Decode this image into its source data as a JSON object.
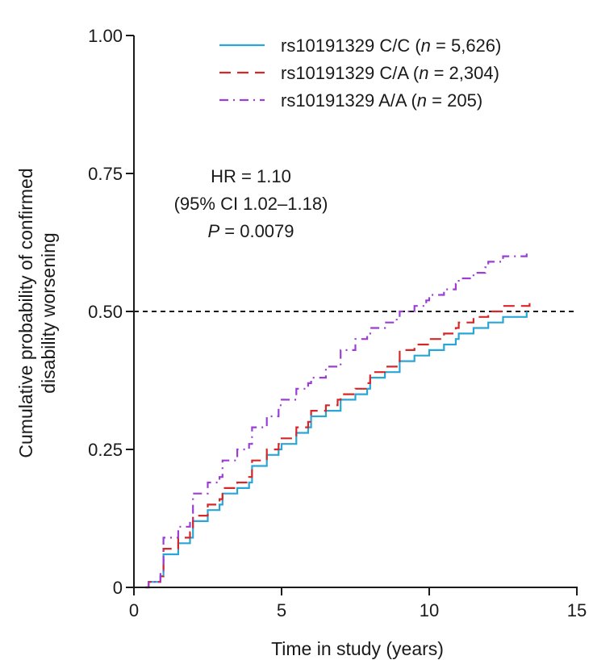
{
  "chart_data": {
    "type": "line",
    "title": "",
    "xlabel": "Time in study (years)",
    "ylabel": [
      "Cumulative probability of confirmed",
      "disability worsening"
    ],
    "xlim": [
      0,
      15
    ],
    "ylim": [
      0,
      1
    ],
    "xticks": [
      0,
      5,
      10,
      15
    ],
    "xtick_labels": [
      "0",
      "5",
      "10",
      "15"
    ],
    "yticks": [
      0,
      0.25,
      0.5,
      0.75,
      1.0
    ],
    "ytick_labels": [
      "0",
      "0.25",
      "0.50",
      "0.75",
      "1.00"
    ],
    "reference_line": {
      "y": 0.5,
      "style": "dashed",
      "color": "#1a1a1a"
    },
    "annotation": [
      "HR = 1.10",
      "(95% CI 1.02–1.18)",
      "P = 0.0079"
    ],
    "legend_position": "top-right",
    "series": [
      {
        "name": "rs10191329 C/C (n = 5,626)",
        "label_prefix": "rs10191329 C/C (",
        "label_n": "n",
        "label_suffix": " = 5,626)",
        "color": "#2aa6d6",
        "dash": "solid",
        "points": [
          [
            0.4,
            0
          ],
          [
            0.5,
            0.01
          ],
          [
            0.9,
            0.02
          ],
          [
            1.0,
            0.06
          ],
          [
            1.5,
            0.08
          ],
          [
            1.9,
            0.09
          ],
          [
            2.0,
            0.12
          ],
          [
            2.5,
            0.14
          ],
          [
            2.9,
            0.15
          ],
          [
            3.0,
            0.17
          ],
          [
            3.5,
            0.18
          ],
          [
            3.9,
            0.19
          ],
          [
            4.0,
            0.22
          ],
          [
            4.5,
            0.24
          ],
          [
            4.9,
            0.25
          ],
          [
            5.0,
            0.26
          ],
          [
            5.5,
            0.28
          ],
          [
            5.9,
            0.29
          ],
          [
            6.0,
            0.31
          ],
          [
            6.5,
            0.32
          ],
          [
            6.9,
            0.32
          ],
          [
            7.0,
            0.34
          ],
          [
            7.5,
            0.35
          ],
          [
            7.9,
            0.36
          ],
          [
            8.0,
            0.38
          ],
          [
            8.5,
            0.39
          ],
          [
            8.9,
            0.39
          ],
          [
            9.0,
            0.41
          ],
          [
            9.5,
            0.42
          ],
          [
            9.9,
            0.42
          ],
          [
            10.0,
            0.43
          ],
          [
            10.5,
            0.44
          ],
          [
            10.9,
            0.45
          ],
          [
            11.0,
            0.46
          ],
          [
            11.5,
            0.47
          ],
          [
            11.9,
            0.47
          ],
          [
            12.0,
            0.48
          ],
          [
            12.5,
            0.49
          ],
          [
            13.3,
            0.5
          ]
        ]
      },
      {
        "name": "rs10191329 C/A (n = 2,304)",
        "label_prefix": "rs10191329 C/A (",
        "label_n": "n",
        "label_suffix": " = 2,304)",
        "color": "#d62728",
        "dash": "long-dash",
        "points": [
          [
            0.4,
            0
          ],
          [
            0.5,
            0.01
          ],
          [
            0.9,
            0.02
          ],
          [
            1.0,
            0.07
          ],
          [
            1.5,
            0.09
          ],
          [
            1.9,
            0.1
          ],
          [
            2.0,
            0.13
          ],
          [
            2.5,
            0.15
          ],
          [
            2.9,
            0.16
          ],
          [
            3.0,
            0.18
          ],
          [
            3.5,
            0.19
          ],
          [
            3.9,
            0.2
          ],
          [
            4.0,
            0.23
          ],
          [
            4.5,
            0.25
          ],
          [
            4.9,
            0.26
          ],
          [
            5.0,
            0.27
          ],
          [
            5.5,
            0.29
          ],
          [
            5.9,
            0.3
          ],
          [
            6.0,
            0.32
          ],
          [
            6.5,
            0.33
          ],
          [
            6.9,
            0.34
          ],
          [
            7.0,
            0.35
          ],
          [
            7.5,
            0.36
          ],
          [
            7.9,
            0.37
          ],
          [
            8.0,
            0.39
          ],
          [
            8.5,
            0.4
          ],
          [
            8.9,
            0.41
          ],
          [
            9.0,
            0.43
          ],
          [
            9.5,
            0.44
          ],
          [
            9.9,
            0.44
          ],
          [
            10.0,
            0.45
          ],
          [
            10.5,
            0.46
          ],
          [
            10.9,
            0.47
          ],
          [
            11.0,
            0.48
          ],
          [
            11.5,
            0.49
          ],
          [
            11.9,
            0.49
          ],
          [
            12.0,
            0.5
          ],
          [
            12.5,
            0.51
          ],
          [
            13.0,
            0.51
          ],
          [
            13.4,
            0.52
          ]
        ]
      },
      {
        "name": "rs10191329 A/A (n = 205)",
        "label_prefix": "rs10191329 A/A (",
        "label_n": "n",
        "label_suffix": " = 205)",
        "color": "#9b3fd4",
        "dash": "dash-dot",
        "points": [
          [
            0.4,
            0
          ],
          [
            0.5,
            0.01
          ],
          [
            0.9,
            0.03
          ],
          [
            1.0,
            0.09
          ],
          [
            1.5,
            0.11
          ],
          [
            1.9,
            0.12
          ],
          [
            2.0,
            0.17
          ],
          [
            2.5,
            0.19
          ],
          [
            2.9,
            0.2
          ],
          [
            3.0,
            0.23
          ],
          [
            3.5,
            0.25
          ],
          [
            3.9,
            0.26
          ],
          [
            4.0,
            0.29
          ],
          [
            4.5,
            0.31
          ],
          [
            4.9,
            0.33
          ],
          [
            5.0,
            0.34
          ],
          [
            5.5,
            0.36
          ],
          [
            5.9,
            0.37
          ],
          [
            6.0,
            0.38
          ],
          [
            6.5,
            0.4
          ],
          [
            6.9,
            0.4
          ],
          [
            7.0,
            0.43
          ],
          [
            7.5,
            0.45
          ],
          [
            7.9,
            0.46
          ],
          [
            8.0,
            0.47
          ],
          [
            8.5,
            0.48
          ],
          [
            8.9,
            0.49
          ],
          [
            9.0,
            0.5
          ],
          [
            9.5,
            0.51
          ],
          [
            9.9,
            0.52
          ],
          [
            10.0,
            0.53
          ],
          [
            10.5,
            0.54
          ],
          [
            10.9,
            0.55
          ],
          [
            11.0,
            0.56
          ],
          [
            11.5,
            0.57
          ],
          [
            11.9,
            0.58
          ],
          [
            12.0,
            0.59
          ],
          [
            12.5,
            0.6
          ],
          [
            13.0,
            0.6
          ],
          [
            13.3,
            0.61
          ]
        ]
      }
    ]
  }
}
